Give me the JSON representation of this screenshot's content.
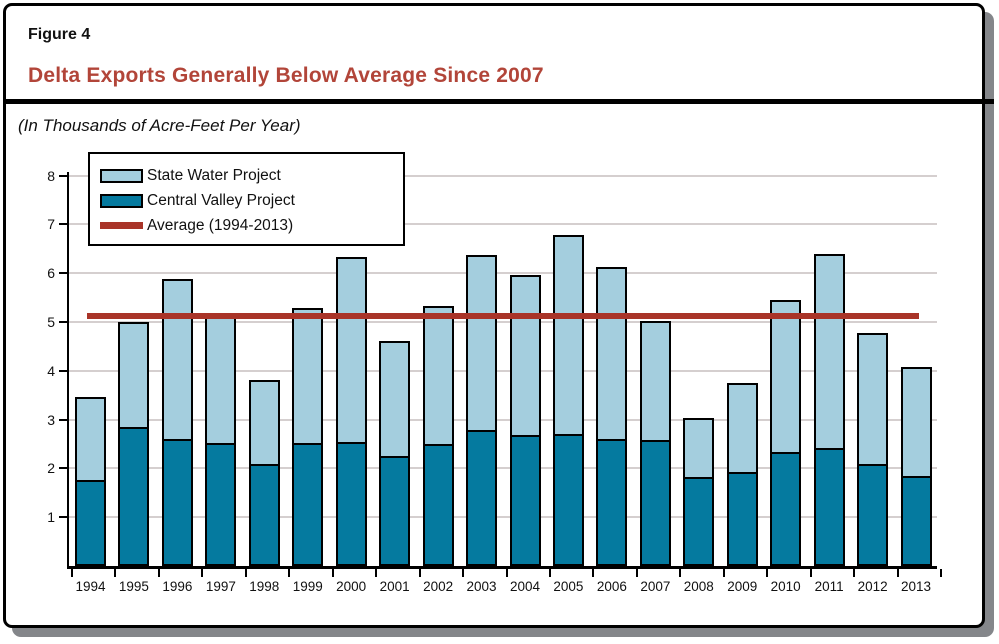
{
  "figure": {
    "label": "Figure 4",
    "title": "Delta Exports Generally Below Average Since 2007",
    "subtitle": "(In Thousands of Acre-Feet Per Year)"
  },
  "colors": {
    "title_red": "#b24539",
    "swp_fill": "#a4cede",
    "cvp_fill": "#057a9f",
    "average_red": "#a93428",
    "gridline": "#d5cfcf",
    "shadow_gray": "#84868a"
  },
  "chart_data": {
    "type": "bar",
    "stacked": true,
    "title": "Delta Exports Generally Below Average Since 2007",
    "units_label": "(In Thousands of Acre-Feet Per Year)",
    "categories": [
      "1994",
      "1995",
      "1996",
      "1997",
      "1998",
      "1999",
      "2000",
      "2001",
      "2002",
      "2003",
      "2004",
      "2005",
      "2006",
      "2007",
      "2008",
      "2009",
      "2010",
      "2011",
      "2012",
      "2013"
    ],
    "series": [
      {
        "name": "State Water Project",
        "values": [
          1.7,
          2.16,
          3.29,
          2.58,
          1.73,
          2.75,
          3.79,
          2.36,
          2.83,
          3.58,
          3.27,
          4.08,
          3.53,
          2.44,
          1.2,
          1.83,
          3.12,
          3.98,
          2.68,
          2.23
        ]
      },
      {
        "name": "Central Valley Project",
        "values": [
          1.77,
          2.84,
          2.6,
          2.52,
          2.08,
          2.53,
          2.55,
          2.26,
          2.5,
          2.79,
          2.69,
          2.7,
          2.6,
          2.59,
          1.83,
          1.93,
          2.34,
          2.42,
          2.09,
          1.84
        ]
      }
    ],
    "totals": [
      3.47,
      5.0,
      5.89,
      5.1,
      3.81,
      5.28,
      6.34,
      4.62,
      5.33,
      6.37,
      5.96,
      6.78,
      6.13,
      5.03,
      3.03,
      3.76,
      5.46,
      6.4,
      4.77,
      4.07
    ],
    "average_line": {
      "label": "Average (1994-2013)",
      "value": 5.13
    },
    "ylim": [
      0,
      8
    ],
    "yticks": [
      1,
      2,
      3,
      4,
      5,
      6,
      7,
      8
    ],
    "grid": true,
    "legend_position": "top-left"
  }
}
